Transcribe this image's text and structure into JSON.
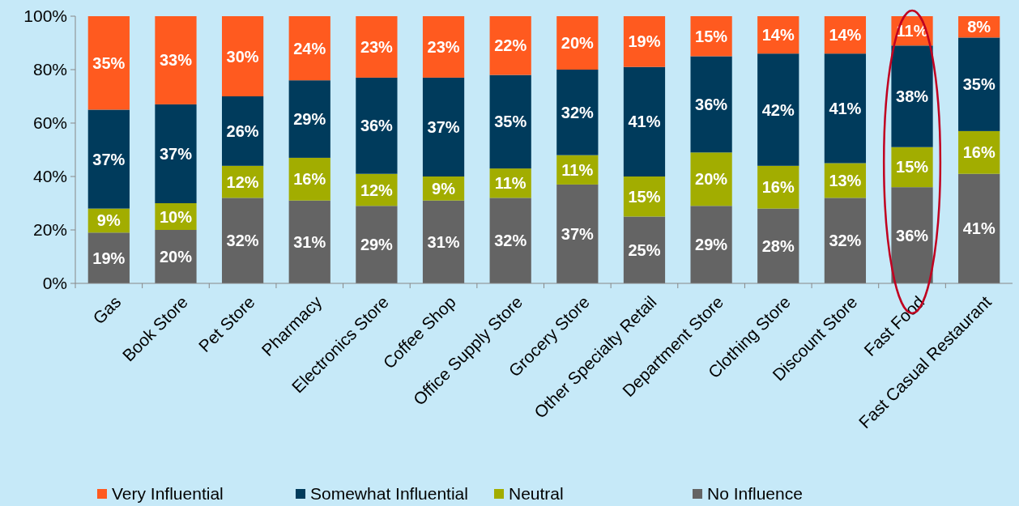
{
  "chart_data": {
    "type": "bar",
    "stacked": true,
    "categories": [
      "Gas",
      "Book Store",
      "Pet Store",
      "Pharmacy",
      "Electronics Store",
      "Coffee Shop",
      "Office Supply Store",
      "Grocery Store",
      "Other Specialty Retail",
      "Department Store",
      "Clothing Store",
      "Discount Store",
      "Fast Food",
      "Fast Casual Restaurant"
    ],
    "series": [
      {
        "name": "No Influence",
        "color": "#646464",
        "values": [
          19,
          20,
          32,
          31,
          29,
          31,
          32,
          37,
          25,
          29,
          28,
          32,
          36,
          41
        ],
        "value_labels": [
          "19%",
          "20%",
          "32%",
          "31%",
          "29%",
          "31%",
          "32%",
          "37%",
          "25%",
          "29%",
          "28%",
          "32%",
          "36%",
          "41%"
        ]
      },
      {
        "name": "Neutral",
        "color": "#a2ad00",
        "values": [
          9,
          10,
          12,
          16,
          12,
          9,
          11,
          11,
          15,
          20,
          16,
          13,
          15,
          16
        ],
        "value_labels": [
          "9%",
          "10%",
          "12%",
          "16%",
          "12%",
          "9%",
          "11%",
          "11%",
          "15%",
          "20%",
          "16%",
          "13%",
          "15%",
          "16%"
        ]
      },
      {
        "name": "Somewhat Influential",
        "color": "#003b5c",
        "values": [
          37,
          37,
          26,
          29,
          36,
          37,
          35,
          32,
          41,
          36,
          42,
          41,
          38,
          35
        ],
        "value_labels": [
          "37%",
          "37%",
          "26%",
          "29%",
          "36%",
          "37%",
          "35%",
          "32%",
          "41%",
          "36%",
          "42%",
          "41%",
          "38%",
          "35%"
        ]
      },
      {
        "name": "Very Influential",
        "color": "#ff5a1f",
        "values": [
          35,
          33,
          30,
          24,
          23,
          23,
          22,
          20,
          19,
          15,
          14,
          14,
          11,
          8
        ],
        "value_labels": [
          "35%",
          "33%",
          "30%",
          "24%",
          "23%",
          "23%",
          "22%",
          "20%",
          "19%",
          "15%",
          "14%",
          "14%",
          "11%",
          "8%"
        ]
      }
    ],
    "ylim": [
      0,
      100
    ],
    "yticks": [
      {
        "value": 0,
        "label": "0%"
      },
      {
        "value": 20,
        "label": "20%"
      },
      {
        "value": 40,
        "label": "40%"
      },
      {
        "value": 60,
        "label": "60%"
      },
      {
        "value": 80,
        "label": "80%"
      },
      {
        "value": 100,
        "label": "100%"
      }
    ],
    "legend": "bottom",
    "grid": false
  }
}
